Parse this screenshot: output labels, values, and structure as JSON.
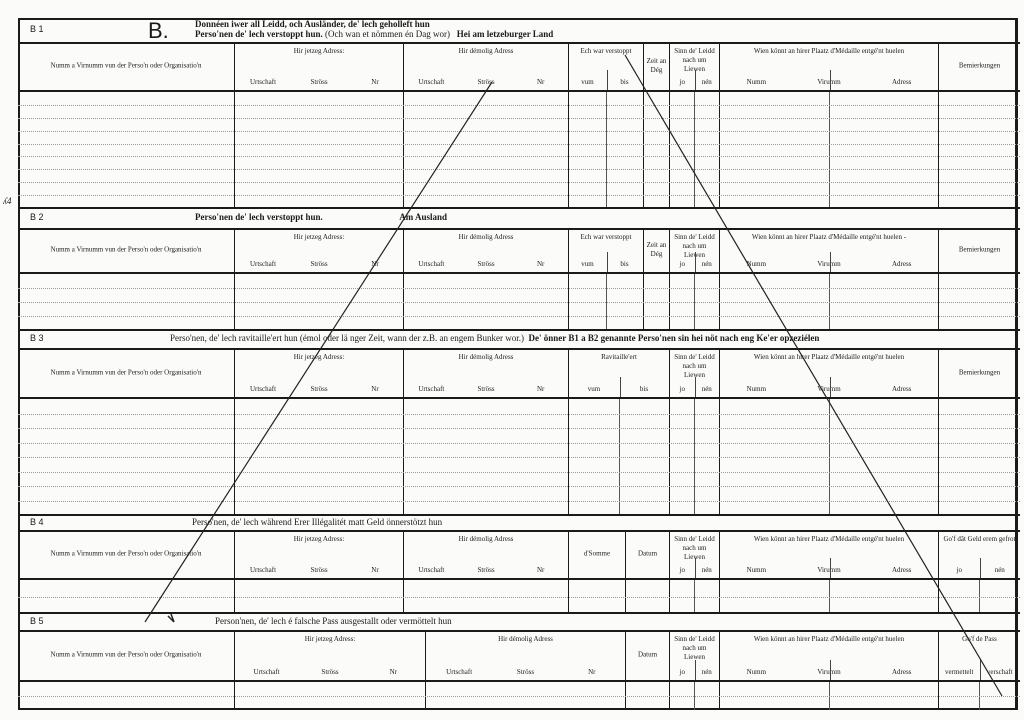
{
  "form_letter": "B.",
  "margin_note": "ʎ4",
  "sections": [
    {
      "id": "B 1",
      "title": [
        [
          {
            "t": "Donnéen iwer all Leidd, och Ausländer, de' lech geholleft hun",
            "b": true
          }
        ],
        [
          {
            "t": "Perso'nen de' lech verstoppt hun.",
            "b": true
          },
          {
            "t": " (Och wan et nömmen én Dag wor)   ",
            "b": false
          },
          {
            "t": "Hei am letzeburger Land",
            "b": true
          }
        ]
      ],
      "columns": [
        {
          "label": "Numm a Virnumm vun der Perso'n oder Organisatio'n",
          "subs": []
        },
        {
          "label": "Hir jetzeg Adress:",
          "subs": [
            "Urtschaft",
            "Ströss",
            "Nr"
          ]
        },
        {
          "label": "Hir démolig Adress",
          "subs": [
            "Urtschaft",
            "Ströss",
            "Nr"
          ]
        },
        {
          "label": "Ech war verstoppt",
          "subs": [
            "vum",
            "bis"
          ]
        },
        {
          "label": "Zeit an Dég",
          "subs": []
        },
        {
          "label": "Sinn de' Leidd nach um Liewen",
          "subs": [
            "jo",
            "nén"
          ]
        },
        {
          "label": "Wien könnt an hirer Plaatz d'Médaille entgé'nt huelen",
          "subs": [
            "Numm",
            "Virumm",
            "Adress"
          ]
        },
        {
          "label": "Bemierkungen",
          "subs": []
        }
      ]
    },
    {
      "id": "B 2",
      "title": [
        [
          {
            "t": "Perso'nen de' lech verstoppt hun.",
            "b": true
          },
          {
            "t": "                                  ",
            "b": false
          },
          {
            "t": "Am Ausland",
            "b": true
          }
        ]
      ],
      "columns": [
        {
          "label": "Numm a Virnumm vun der Perso'n oder Organisatio'n",
          "subs": []
        },
        {
          "label": "Hir jetzeg Adress:",
          "subs": [
            "Urtschaft",
            "Ströss",
            "Nr"
          ]
        },
        {
          "label": "Hir démolig Adress",
          "subs": [
            "Urtschaft",
            "Ströss",
            "Nr"
          ]
        },
        {
          "label": "Ech war verstoppt",
          "subs": [
            "vum",
            "bis"
          ]
        },
        {
          "label": "Zeit an Dég",
          "subs": []
        },
        {
          "label": "Sinn de' Leidd nach um Liewen",
          "subs": [
            "jo",
            "nén"
          ]
        },
        {
          "label": "Wien könnt an hirer Plaatz d'Médaille entgé'nt huelen -",
          "subs": [
            "Numm",
            "Virumm",
            "Adress"
          ]
        },
        {
          "label": "Bemierkungen",
          "subs": []
        }
      ]
    },
    {
      "id": "B 3",
      "title": [
        [
          {
            "t": "Perso'nen, de' lech ravitaille'ert hun (émol oder lä nger Zeit, wann der z.B. an engem Bunker wor.)  ",
            "b": false
          },
          {
            "t": "De' önner B1 a B2 genannte Perso'nen sin hei nöt nach eng Ke'er opzeziélen",
            "b": true
          }
        ]
      ],
      "columns": [
        {
          "label": "Numm a Virnumm vun der Perso'n oder Organisatio'n",
          "subs": []
        },
        {
          "label": "Hir jetzeg Adress:",
          "subs": [
            "Urtschaft",
            "Ströss",
            "Nr"
          ]
        },
        {
          "label": "Hir démolig Adress",
          "subs": [
            "Urtschaft",
            "Ströss",
            "Nr"
          ]
        },
        {
          "label": "Ravitaille'ert",
          "subs": [
            "vum",
            "bis"
          ]
        },
        {
          "label": "Sinn de' Leidd nach um Liewen",
          "subs": [
            "jo",
            "nén"
          ]
        },
        {
          "label": "Wien könnt an hirer Plaatz d'Médaille entgé'nt huelen",
          "subs": [
            "Numm",
            "Virumm",
            "Adress"
          ]
        },
        {
          "label": "Bemierkungen",
          "subs": []
        }
      ]
    },
    {
      "id": "B 4",
      "title": [
        [
          {
            "t": "Perso'nen, de' lech während Erer Illégalitét matt Geld önnerstötzt hun",
            "b": false
          }
        ]
      ],
      "columns": [
        {
          "label": "Numm a Virnumm vun der Perso'n oder Organisatio'n",
          "subs": []
        },
        {
          "label": "Hir jetzeg Adress:",
          "subs": [
            "Urtschaft",
            "Ströss",
            "Nr"
          ]
        },
        {
          "label": "Hir démolig Adress",
          "subs": [
            "Urtschaft",
            "Ströss",
            "Nr"
          ]
        },
        {
          "label": "d'Somme",
          "subs": []
        },
        {
          "label": "Datum",
          "subs": []
        },
        {
          "label": "Sinn de' Leidd nach um Liewen",
          "subs": [
            "jo",
            "nén"
          ]
        },
        {
          "label": "Wien könnt an hirer Plaatz d'Médaille entgé'nt huelen",
          "subs": [
            "Numm",
            "Virumm",
            "Adress"
          ]
        },
        {
          "label": "Go'f dât Geld erem gefrot",
          "subs": [
            "jo",
            "nén"
          ]
        }
      ]
    },
    {
      "id": "B 5",
      "title": [
        [
          {
            "t": "Person'nen, de' lech é falsche Pass ausgestallt oder vermöttelt hun",
            "b": false
          }
        ]
      ],
      "columns": [
        {
          "label": "Numm a Virnumm vun der Perso'n oder Organisatio'n",
          "subs": []
        },
        {
          "label": "Hir jetzeg Adress:",
          "subs": [
            "Urtschaft",
            "Ströss",
            "Nr"
          ]
        },
        {
          "label": "Hir démolig Adress",
          "subs": [
            "Urtschaft",
            "Ströss",
            "Nr"
          ]
        },
        {
          "label": "Datum",
          "subs": []
        },
        {
          "label": "Sinn de' Leidd nach um Liewen",
          "subs": [
            "jo",
            "nén"
          ]
        },
        {
          "label": "Wien könnt an hirer Plaatz d'Médaille entgé'nt huelen",
          "subs": [
            "Numm",
            "Virumm",
            "Adress"
          ]
        },
        {
          "label": "Go'f de Pass",
          "subs": [
            "vermettelt",
            "verschaft"
          ]
        }
      ]
    }
  ]
}
